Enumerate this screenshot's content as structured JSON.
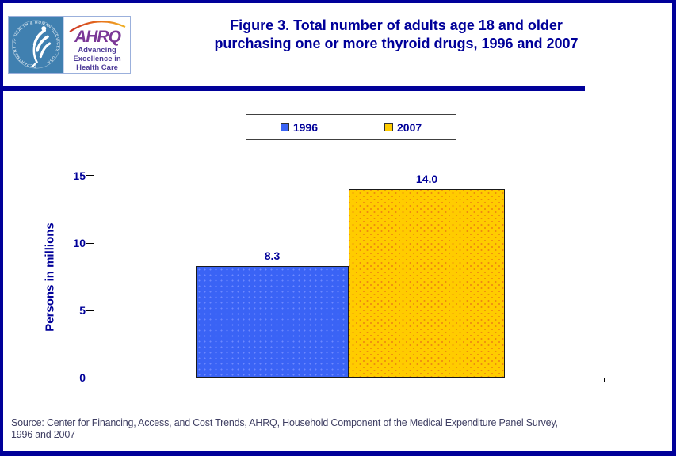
{
  "page": {
    "border_color": "#000099",
    "background": "#FFFFFF",
    "navy": "#000099"
  },
  "logo": {
    "hhs_seal_text": "DEPARTMENT OF HEALTH & HUMAN SERVICES · USA",
    "ahrq_acronym": "AHRQ",
    "tagline_line1": "Advancing",
    "tagline_line2": "Excellence in",
    "tagline_line3": "Health Care"
  },
  "header": {
    "title_line1": "Figure 3. Total number of adults age 18 and older",
    "title_line2": "purchasing one or more thyroid drugs, 1996 and 2007"
  },
  "legend": {
    "items": [
      {
        "label": "1996",
        "color": "#3A63F5"
      },
      {
        "label": "2007",
        "color": "#FFCC00"
      }
    ]
  },
  "chart_data": {
    "type": "bar",
    "title": "Figure 3. Total number of adults age 18 and older purchasing one or more thyroid drugs, 1996 and 2007",
    "categories": [
      "1996",
      "2007"
    ],
    "values": [
      8.3,
      14.0
    ],
    "value_labels": [
      "8.3",
      "14.0"
    ],
    "series_colors": [
      "#3A63F5",
      "#FFCC00"
    ],
    "xlabel": "",
    "ylabel": "Persons in millions",
    "ylim": [
      0,
      15
    ],
    "yticks": [
      "0",
      "5",
      "10",
      "15"
    ],
    "grid": false,
    "legend_position": "top",
    "data_labels_shown": true
  },
  "source": {
    "line1": "Source: Center for Financing, Access, and Cost Trends, AHRQ, Household Component of the Medical Expenditure Panel Survey,",
    "line2": "1996 and 2007"
  }
}
